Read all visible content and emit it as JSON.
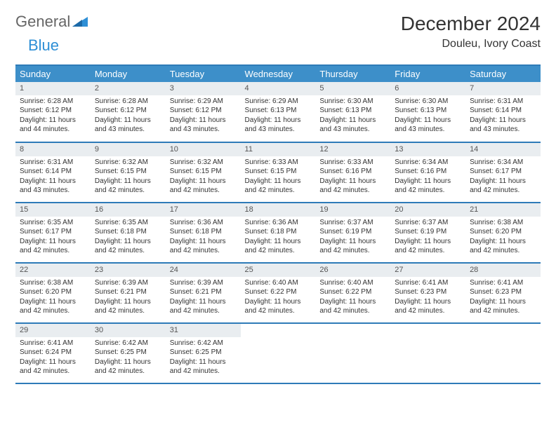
{
  "logo": {
    "part1": "General",
    "part2": "Blue"
  },
  "title": "December 2024",
  "location": "Douleu, Ivory Coast",
  "colors": {
    "header_bg": "#3d8fc9",
    "header_text": "#ffffff",
    "border": "#2e7bb8",
    "daynum_bg": "#e9edf0",
    "logo_blue": "#2e8fd6"
  },
  "weekdays": [
    "Sunday",
    "Monday",
    "Tuesday",
    "Wednesday",
    "Thursday",
    "Friday",
    "Saturday"
  ],
  "weeks": [
    [
      {
        "day": "1",
        "sunrise": "Sunrise: 6:28 AM",
        "sunset": "Sunset: 6:12 PM",
        "daylight": "Daylight: 11 hours and 44 minutes."
      },
      {
        "day": "2",
        "sunrise": "Sunrise: 6:28 AM",
        "sunset": "Sunset: 6:12 PM",
        "daylight": "Daylight: 11 hours and 43 minutes."
      },
      {
        "day": "3",
        "sunrise": "Sunrise: 6:29 AM",
        "sunset": "Sunset: 6:12 PM",
        "daylight": "Daylight: 11 hours and 43 minutes."
      },
      {
        "day": "4",
        "sunrise": "Sunrise: 6:29 AM",
        "sunset": "Sunset: 6:13 PM",
        "daylight": "Daylight: 11 hours and 43 minutes."
      },
      {
        "day": "5",
        "sunrise": "Sunrise: 6:30 AM",
        "sunset": "Sunset: 6:13 PM",
        "daylight": "Daylight: 11 hours and 43 minutes."
      },
      {
        "day": "6",
        "sunrise": "Sunrise: 6:30 AM",
        "sunset": "Sunset: 6:13 PM",
        "daylight": "Daylight: 11 hours and 43 minutes."
      },
      {
        "day": "7",
        "sunrise": "Sunrise: 6:31 AM",
        "sunset": "Sunset: 6:14 PM",
        "daylight": "Daylight: 11 hours and 43 minutes."
      }
    ],
    [
      {
        "day": "8",
        "sunrise": "Sunrise: 6:31 AM",
        "sunset": "Sunset: 6:14 PM",
        "daylight": "Daylight: 11 hours and 43 minutes."
      },
      {
        "day": "9",
        "sunrise": "Sunrise: 6:32 AM",
        "sunset": "Sunset: 6:15 PM",
        "daylight": "Daylight: 11 hours and 42 minutes."
      },
      {
        "day": "10",
        "sunrise": "Sunrise: 6:32 AM",
        "sunset": "Sunset: 6:15 PM",
        "daylight": "Daylight: 11 hours and 42 minutes."
      },
      {
        "day": "11",
        "sunrise": "Sunrise: 6:33 AM",
        "sunset": "Sunset: 6:15 PM",
        "daylight": "Daylight: 11 hours and 42 minutes."
      },
      {
        "day": "12",
        "sunrise": "Sunrise: 6:33 AM",
        "sunset": "Sunset: 6:16 PM",
        "daylight": "Daylight: 11 hours and 42 minutes."
      },
      {
        "day": "13",
        "sunrise": "Sunrise: 6:34 AM",
        "sunset": "Sunset: 6:16 PM",
        "daylight": "Daylight: 11 hours and 42 minutes."
      },
      {
        "day": "14",
        "sunrise": "Sunrise: 6:34 AM",
        "sunset": "Sunset: 6:17 PM",
        "daylight": "Daylight: 11 hours and 42 minutes."
      }
    ],
    [
      {
        "day": "15",
        "sunrise": "Sunrise: 6:35 AM",
        "sunset": "Sunset: 6:17 PM",
        "daylight": "Daylight: 11 hours and 42 minutes."
      },
      {
        "day": "16",
        "sunrise": "Sunrise: 6:35 AM",
        "sunset": "Sunset: 6:18 PM",
        "daylight": "Daylight: 11 hours and 42 minutes."
      },
      {
        "day": "17",
        "sunrise": "Sunrise: 6:36 AM",
        "sunset": "Sunset: 6:18 PM",
        "daylight": "Daylight: 11 hours and 42 minutes."
      },
      {
        "day": "18",
        "sunrise": "Sunrise: 6:36 AM",
        "sunset": "Sunset: 6:18 PM",
        "daylight": "Daylight: 11 hours and 42 minutes."
      },
      {
        "day": "19",
        "sunrise": "Sunrise: 6:37 AM",
        "sunset": "Sunset: 6:19 PM",
        "daylight": "Daylight: 11 hours and 42 minutes."
      },
      {
        "day": "20",
        "sunrise": "Sunrise: 6:37 AM",
        "sunset": "Sunset: 6:19 PM",
        "daylight": "Daylight: 11 hours and 42 minutes."
      },
      {
        "day": "21",
        "sunrise": "Sunrise: 6:38 AM",
        "sunset": "Sunset: 6:20 PM",
        "daylight": "Daylight: 11 hours and 42 minutes."
      }
    ],
    [
      {
        "day": "22",
        "sunrise": "Sunrise: 6:38 AM",
        "sunset": "Sunset: 6:20 PM",
        "daylight": "Daylight: 11 hours and 42 minutes."
      },
      {
        "day": "23",
        "sunrise": "Sunrise: 6:39 AM",
        "sunset": "Sunset: 6:21 PM",
        "daylight": "Daylight: 11 hours and 42 minutes."
      },
      {
        "day": "24",
        "sunrise": "Sunrise: 6:39 AM",
        "sunset": "Sunset: 6:21 PM",
        "daylight": "Daylight: 11 hours and 42 minutes."
      },
      {
        "day": "25",
        "sunrise": "Sunrise: 6:40 AM",
        "sunset": "Sunset: 6:22 PM",
        "daylight": "Daylight: 11 hours and 42 minutes."
      },
      {
        "day": "26",
        "sunrise": "Sunrise: 6:40 AM",
        "sunset": "Sunset: 6:22 PM",
        "daylight": "Daylight: 11 hours and 42 minutes."
      },
      {
        "day": "27",
        "sunrise": "Sunrise: 6:41 AM",
        "sunset": "Sunset: 6:23 PM",
        "daylight": "Daylight: 11 hours and 42 minutes."
      },
      {
        "day": "28",
        "sunrise": "Sunrise: 6:41 AM",
        "sunset": "Sunset: 6:23 PM",
        "daylight": "Daylight: 11 hours and 42 minutes."
      }
    ],
    [
      {
        "day": "29",
        "sunrise": "Sunrise: 6:41 AM",
        "sunset": "Sunset: 6:24 PM",
        "daylight": "Daylight: 11 hours and 42 minutes."
      },
      {
        "day": "30",
        "sunrise": "Sunrise: 6:42 AM",
        "sunset": "Sunset: 6:25 PM",
        "daylight": "Daylight: 11 hours and 42 minutes."
      },
      {
        "day": "31",
        "sunrise": "Sunrise: 6:42 AM",
        "sunset": "Sunset: 6:25 PM",
        "daylight": "Daylight: 11 hours and 42 minutes."
      },
      {
        "day": "",
        "sunrise": "",
        "sunset": "",
        "daylight": ""
      },
      {
        "day": "",
        "sunrise": "",
        "sunset": "",
        "daylight": ""
      },
      {
        "day": "",
        "sunrise": "",
        "sunset": "",
        "daylight": ""
      },
      {
        "day": "",
        "sunrise": "",
        "sunset": "",
        "daylight": ""
      }
    ]
  ]
}
